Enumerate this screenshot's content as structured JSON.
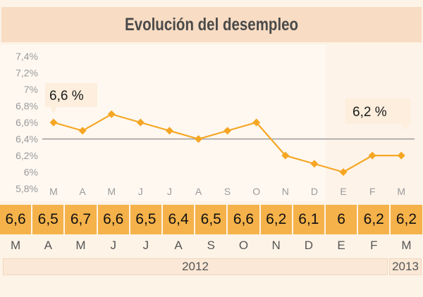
{
  "title": "Evolución del desempleo",
  "chart_data": {
    "type": "line",
    "title": "Evolución del desempleo",
    "x": [
      "M",
      "A",
      "M",
      "J",
      "J",
      "A",
      "S",
      "O",
      "N",
      "D",
      "E",
      "F",
      "M"
    ],
    "values": [
      6.6,
      6.5,
      6.7,
      6.6,
      6.5,
      6.4,
      6.5,
      6.6,
      6.2,
      6.1,
      6,
      6.2,
      6.2
    ],
    "ylim": [
      5.8,
      7.4
    ],
    "yticks": [
      "5,8%",
      "6%",
      "6,2%",
      "6,4%",
      "6,6%",
      "6,8%",
      "7%",
      "7,2%",
      "7,4%"
    ],
    "reference_line": 6.4,
    "annotations": [
      {
        "label": "6,6 %",
        "index": 0
      },
      {
        "label": "6,2 %",
        "index": 12
      }
    ],
    "colors": {
      "line": "#f5a623",
      "reference": "#999999",
      "cells": "#f5b24a"
    }
  },
  "table": {
    "values": [
      "6,6",
      "6,5",
      "6,7",
      "6,6",
      "6,5",
      "6,4",
      "6,5",
      "6,6",
      "6,2",
      "6,1",
      "6",
      "6,2",
      "6,2"
    ],
    "months": [
      "M",
      "A",
      "M",
      "J",
      "J",
      "A",
      "S",
      "O",
      "N",
      "D",
      "E",
      "F",
      "M"
    ],
    "years": [
      {
        "label": "2012"
      },
      {
        "label": "2013"
      }
    ]
  }
}
